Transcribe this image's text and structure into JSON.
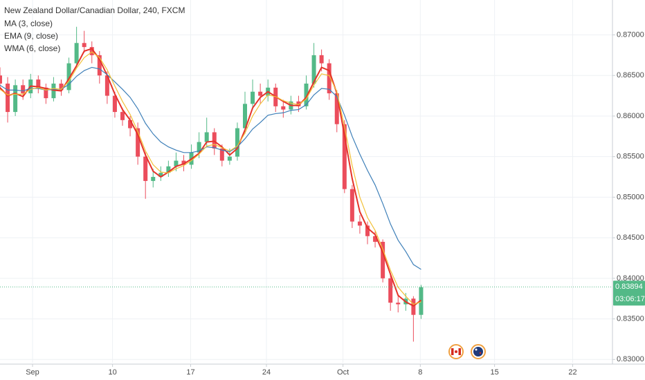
{
  "chart_data": {
    "type": "candlestick",
    "title": "New Zealand Dollar/Canadian Dollar, 240, FXCM",
    "x": [
      0,
      1,
      2,
      3,
      4,
      5,
      6,
      7,
      8,
      9,
      10,
      11,
      12,
      13,
      14,
      15,
      16,
      17,
      18,
      19,
      20,
      21,
      22,
      23,
      24,
      25,
      26,
      27,
      28,
      29,
      30,
      31,
      32,
      33,
      34,
      35,
      36,
      37,
      38,
      39,
      40,
      41,
      42,
      43,
      44,
      45,
      46,
      47,
      48,
      49,
      50,
      51,
      52,
      53,
      54,
      55
    ],
    "open": [
      0.865,
      0.864,
      0.8605,
      0.8638,
      0.8628,
      0.8645,
      0.8635,
      0.8622,
      0.864,
      0.8632,
      0.8665,
      0.869,
      0.8685,
      0.8675,
      0.865,
      0.8625,
      0.8605,
      0.8595,
      0.8585,
      0.855,
      0.852,
      0.8525,
      0.853,
      0.8538,
      0.8545,
      0.854,
      0.8555,
      0.8568,
      0.858,
      0.856,
      0.8545,
      0.855,
      0.8585,
      0.8615,
      0.863,
      0.8625,
      0.8635,
      0.8612,
      0.8608,
      0.8618,
      0.8612,
      0.864,
      0.8675,
      0.8665,
      0.8628,
      0.859,
      0.851,
      0.847,
      0.8465,
      0.8452,
      0.8445,
      0.84,
      0.837,
      0.8368,
      0.8375,
      0.8355
    ],
    "high": [
      0.866,
      0.8648,
      0.8645,
      0.8645,
      0.8652,
      0.865,
      0.864,
      0.8648,
      0.8645,
      0.8672,
      0.871,
      0.8705,
      0.8692,
      0.868,
      0.8655,
      0.863,
      0.861,
      0.86,
      0.8592,
      0.8555,
      0.8535,
      0.8538,
      0.8545,
      0.8555,
      0.8552,
      0.8565,
      0.858,
      0.8598,
      0.8585,
      0.8565,
      0.856,
      0.8592,
      0.863,
      0.8645,
      0.864,
      0.8645,
      0.864,
      0.862,
      0.8625,
      0.8625,
      0.865,
      0.869,
      0.8682,
      0.867,
      0.8632,
      0.8595,
      0.8515,
      0.8478,
      0.847,
      0.8458,
      0.8448,
      0.8405,
      0.838,
      0.8382,
      0.8378,
      0.8392
    ],
    "low": [
      0.8632,
      0.8592,
      0.86,
      0.862,
      0.8622,
      0.8628,
      0.8615,
      0.8618,
      0.8625,
      0.8628,
      0.866,
      0.8678,
      0.8665,
      0.864,
      0.8615,
      0.8598,
      0.8588,
      0.8575,
      0.854,
      0.8498,
      0.8512,
      0.852,
      0.8525,
      0.8532,
      0.8532,
      0.8535,
      0.8548,
      0.8562,
      0.8552,
      0.8538,
      0.854,
      0.8545,
      0.8578,
      0.8608,
      0.8615,
      0.8618,
      0.8605,
      0.8598,
      0.8602,
      0.8605,
      0.8608,
      0.8635,
      0.8655,
      0.862,
      0.858,
      0.8505,
      0.8462,
      0.8455,
      0.8442,
      0.8438,
      0.8395,
      0.836,
      0.8358,
      0.836,
      0.8322,
      0.835
    ],
    "close": [
      0.864,
      0.8605,
      0.8638,
      0.8628,
      0.8645,
      0.8635,
      0.8622,
      0.864,
      0.8632,
      0.8665,
      0.869,
      0.8685,
      0.8675,
      0.865,
      0.8625,
      0.8605,
      0.8595,
      0.8585,
      0.855,
      0.852,
      0.8525,
      0.853,
      0.8538,
      0.8545,
      0.854,
      0.8555,
      0.8568,
      0.858,
      0.856,
      0.8545,
      0.855,
      0.8585,
      0.8615,
      0.863,
      0.8625,
      0.8635,
      0.8612,
      0.8608,
      0.8618,
      0.8612,
      0.864,
      0.8675,
      0.8665,
      0.8628,
      0.859,
      0.851,
      0.847,
      0.8465,
      0.8452,
      0.8445,
      0.84,
      0.837,
      0.8368,
      0.8375,
      0.8355,
      0.8389
    ],
    "up_color": "#53b987",
    "down_color": "#eb4d5c",
    "series": [
      {
        "name": "MA (3, close)",
        "color": "#e5332a",
        "values": [
          0.8635,
          0.8625,
          0.8628,
          0.8624,
          0.8637,
          0.8636,
          0.8634,
          0.8632,
          0.8631,
          0.8646,
          0.8662,
          0.868,
          0.8683,
          0.867,
          0.865,
          0.8627,
          0.8608,
          0.8595,
          0.8577,
          0.8552,
          0.8532,
          0.8525,
          0.8531,
          0.8538,
          0.8541,
          0.8547,
          0.8554,
          0.8568,
          0.8569,
          0.8562,
          0.8552,
          0.856,
          0.8583,
          0.861,
          0.8623,
          0.863,
          0.8624,
          0.8618,
          0.8613,
          0.8613,
          0.8623,
          0.8642,
          0.866,
          0.8656,
          0.8628,
          0.8576,
          0.8523,
          0.8482,
          0.8462,
          0.8454,
          0.8432,
          0.8405,
          0.8379,
          0.8371,
          0.8366,
          0.8373
        ]
      },
      {
        "name": "EMA (9, close)",
        "color": "#3d7fb8",
        "values": [
          0.8638,
          0.8632,
          0.8632,
          0.8631,
          0.8634,
          0.8634,
          0.8632,
          0.8633,
          0.8633,
          0.8639,
          0.8649,
          0.8656,
          0.866,
          0.8658,
          0.8651,
          0.8642,
          0.8633,
          0.8623,
          0.8609,
          0.8591,
          0.8578,
          0.8568,
          0.8562,
          0.8558,
          0.8555,
          0.8555,
          0.8557,
          0.8562,
          0.8561,
          0.8558,
          0.8556,
          0.8562,
          0.8572,
          0.8584,
          0.8592,
          0.8601,
          0.8603,
          0.8604,
          0.8607,
          0.8608,
          0.8614,
          0.8626,
          0.8634,
          0.8633,
          0.8624,
          0.8601,
          0.8575,
          0.8553,
          0.8533,
          0.8515,
          0.8492,
          0.8467,
          0.8447,
          0.8433,
          0.8417,
          0.8411
        ]
      },
      {
        "name": "WMA (6, close)",
        "color": "#f2c037",
        "values": [
          0.8633,
          0.8626,
          0.8627,
          0.8627,
          0.8633,
          0.8635,
          0.8632,
          0.8634,
          0.8633,
          0.8643,
          0.8659,
          0.8672,
          0.8679,
          0.8672,
          0.8657,
          0.8637,
          0.8618,
          0.8602,
          0.8581,
          0.8557,
          0.854,
          0.8531,
          0.853,
          0.8535,
          0.8539,
          0.8545,
          0.8553,
          0.8563,
          0.8565,
          0.8561,
          0.8557,
          0.8563,
          0.8579,
          0.86,
          0.8615,
          0.8626,
          0.8624,
          0.8619,
          0.8616,
          0.8614,
          0.8621,
          0.8638,
          0.8652,
          0.865,
          0.863,
          0.8587,
          0.8539,
          0.85,
          0.8475,
          0.8459,
          0.8436,
          0.841,
          0.8389,
          0.8378,
          0.8368,
          0.8371
        ]
      }
    ],
    "xlim": [
      0,
      80
    ],
    "xticks": [
      {
        "value": 4.25,
        "label": "Sep"
      },
      {
        "value": 14.7,
        "label": "10"
      },
      {
        "value": 24.9,
        "label": "17"
      },
      {
        "value": 34.8,
        "label": "24"
      },
      {
        "value": 44.8,
        "label": "Oct"
      },
      {
        "value": 54.9,
        "label": "8"
      },
      {
        "value": 64.6,
        "label": "15"
      },
      {
        "value": 74.8,
        "label": "22"
      }
    ],
    "ylim": [
      0.8296,
      0.8743
    ],
    "yticks": [
      {
        "value": 0.83,
        "label": "0.83000"
      },
      {
        "value": 0.835,
        "label": "0.83500"
      },
      {
        "value": 0.84,
        "label": "0.84000"
      },
      {
        "value": 0.845,
        "label": "0.84500"
      },
      {
        "value": 0.85,
        "label": "0.85000"
      },
      {
        "value": 0.855,
        "label": "0.85500"
      },
      {
        "value": 0.86,
        "label": "0.86000"
      },
      {
        "value": 0.865,
        "label": "0.86500"
      },
      {
        "value": 0.87,
        "label": "0.87000"
      }
    ],
    "grid": true,
    "last_price": {
      "value": 0.83894,
      "label": "0.83894"
    },
    "countdown": "03:06:17"
  }
}
